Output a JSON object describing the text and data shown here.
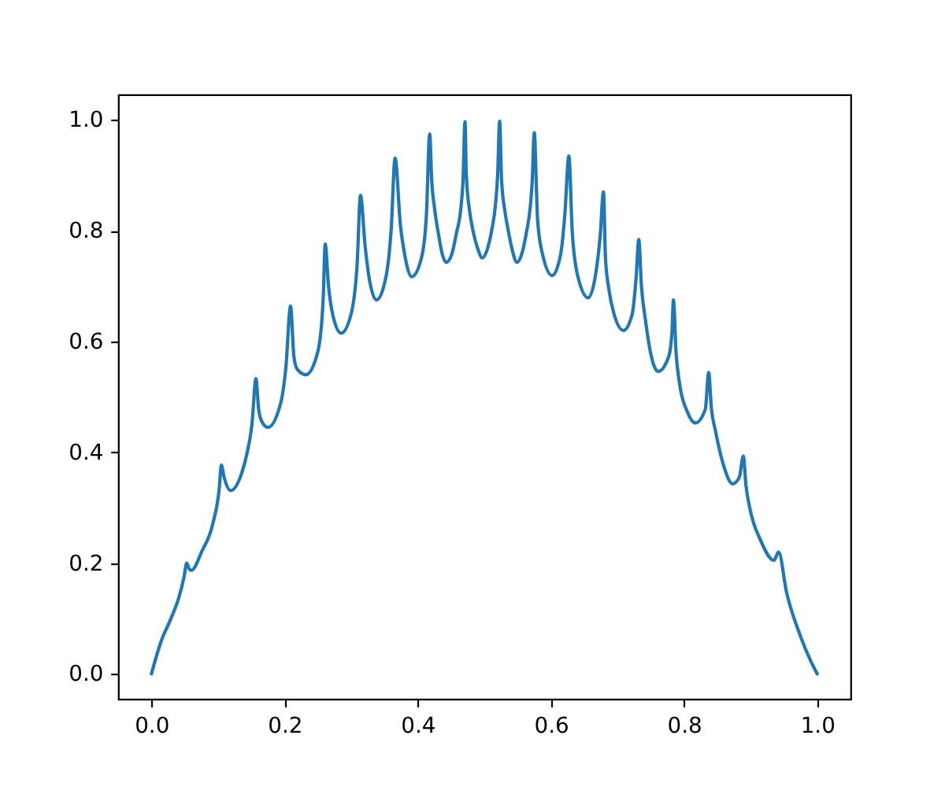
{
  "chart_data": {
    "type": "line",
    "x": [
      0,
      0.014,
      0.029,
      0.041,
      0.049,
      0.053,
      0.057,
      0.06,
      0.076,
      0.092,
      0.102,
      0.105,
      0.109,
      0.119,
      0.136,
      0.143,
      0.151,
      0.157,
      0.161,
      0.166,
      0.175,
      0.194,
      0.202,
      0.209,
      0.214,
      0.219,
      0.232,
      0.25,
      0.258,
      0.261,
      0.266,
      0.273,
      0.285,
      0.3,
      0.309,
      0.314,
      0.321,
      0.327,
      0.338,
      0.352,
      0.36,
      0.366,
      0.374,
      0.381,
      0.391,
      0.406,
      0.413,
      0.418,
      0.421,
      0.425,
      0.431,
      0.437,
      0.443,
      0.451,
      0.458,
      0.465,
      0.468,
      0.471,
      0.473,
      0.478,
      0.483,
      0.49,
      0.497,
      0.504,
      0.511,
      0.517,
      0.52,
      0.523,
      0.526,
      0.531,
      0.536,
      0.542,
      0.549,
      0.556,
      0.563,
      0.569,
      0.572,
      0.575,
      0.58,
      0.587,
      0.602,
      0.615,
      0.621,
      0.627,
      0.632,
      0.64,
      0.656,
      0.667,
      0.674,
      0.679,
      0.682,
      0.687,
      0.695,
      0.709,
      0.722,
      0.728,
      0.732,
      0.736,
      0.742,
      0.75,
      0.761,
      0.777,
      0.782,
      0.784,
      0.788,
      0.793,
      0.805,
      0.817,
      0.832,
      0.837,
      0.841,
      0.847,
      0.86,
      0.873,
      0.883,
      0.889,
      0.893,
      0.899,
      0.915,
      0.935,
      0.942,
      0.954,
      0.974,
      0.99,
      1
    ],
    "series": [
      {
        "color": "#1f77b4",
        "values": [
          0,
          0.057,
          0.099,
          0.137,
          0.175,
          0.2,
          0.189,
          0.187,
          0.222,
          0.27,
          0.336,
          0.377,
          0.356,
          0.331,
          0.364,
          0.395,
          0.45,
          0.533,
          0.478,
          0.455,
          0.445,
          0.488,
          0.554,
          0.664,
          0.573,
          0.55,
          0.54,
          0.582,
          0.677,
          0.776,
          0.7,
          0.645,
          0.615,
          0.65,
          0.74,
          0.864,
          0.772,
          0.715,
          0.675,
          0.715,
          0.8,
          0.931,
          0.81,
          0.753,
          0.717,
          0.753,
          0.828,
          0.975,
          0.89,
          0.843,
          0.795,
          0.757,
          0.743,
          0.757,
          0.795,
          0.843,
          0.89,
          0.997,
          0.9,
          0.835,
          0.8,
          0.768,
          0.751,
          0.765,
          0.8,
          0.85,
          0.9,
          0.998,
          0.89,
          0.835,
          0.8,
          0.765,
          0.743,
          0.757,
          0.795,
          0.843,
          0.89,
          0.977,
          0.82,
          0.76,
          0.719,
          0.76,
          0.83,
          0.935,
          0.8,
          0.72,
          0.679,
          0.72,
          0.79,
          0.87,
          0.75,
          0.695,
          0.649,
          0.62,
          0.649,
          0.715,
          0.784,
          0.7,
          0.639,
          0.578,
          0.546,
          0.573,
          0.62,
          0.675,
          0.58,
          0.526,
          0.473,
          0.453,
          0.478,
          0.544,
          0.48,
          0.44,
          0.374,
          0.343,
          0.355,
          0.393,
          0.34,
          0.298,
          0.241,
          0.205,
          0.22,
          0.147,
          0.071,
          0.024,
          0
        ]
      }
    ],
    "xlim": [
      -0.05,
      1.05
    ],
    "ylim": [
      -0.045,
      1.046
    ],
    "xticks": [
      {
        "value": 0,
        "label": "0.0"
      },
      0.2,
      0.4,
      0.6,
      0.8,
      {
        "value": 1,
        "label": "1.0"
      }
    ],
    "yticks": [
      {
        "value": 0,
        "label": "0.0"
      },
      0.2,
      0.4,
      0.6,
      0.8,
      {
        "value": 1,
        "label": "1.0"
      }
    ],
    "grid": false,
    "line_style": "solid"
  }
}
